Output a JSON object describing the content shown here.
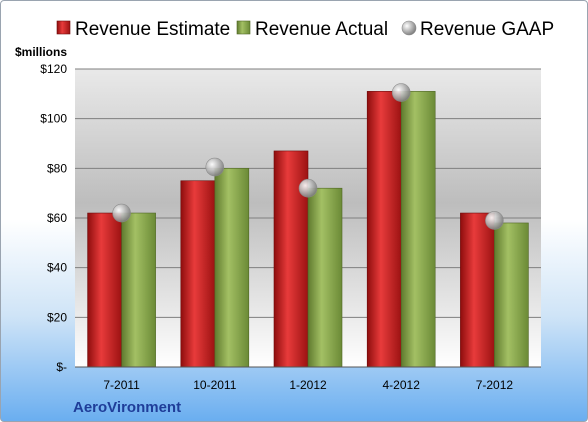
{
  "chart_data": {
    "type": "bar",
    "unit_label": "$millions",
    "company": "AeroVironment",
    "categories": [
      "7-2011",
      "10-2011",
      "1-2012",
      "4-2012",
      "7-2012"
    ],
    "series": [
      {
        "name": "Revenue Estimate",
        "type": "bar",
        "color": "#c81e1e",
        "values": [
          62,
          75,
          87,
          111,
          62
        ]
      },
      {
        "name": "Revenue Actual",
        "type": "bar",
        "color": "#8aa84e",
        "values": [
          62,
          80,
          72,
          111,
          58
        ]
      },
      {
        "name": "Revenue GAAP",
        "type": "marker",
        "color": "#b8b8b8",
        "values": [
          62,
          80.5,
          72,
          110.5,
          59
        ]
      }
    ],
    "ylim": [
      0,
      120
    ],
    "yticks": [
      0,
      20,
      40,
      60,
      80,
      100,
      120
    ],
    "ytick_labels": [
      "$-",
      "$20",
      "$40",
      "$60",
      "$80",
      "$100",
      "$120"
    ],
    "grid": true,
    "legend_position": "top"
  }
}
